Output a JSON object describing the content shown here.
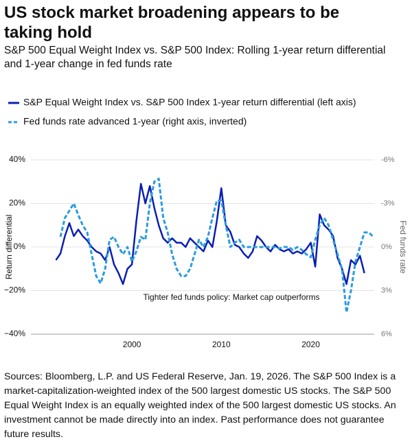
{
  "chart_data": {
    "type": "line",
    "title": "US stock market broadening appears to be taking hold",
    "subtitle": "S&P 500 Equal Weight Index vs. S&P 500 Index: Rolling 1-year return differential and 1-year change in fed funds rate",
    "ylabel": "Return differential",
    "y2label": "Fed funds rate",
    "annotation": "Tighter fed funds policy: Market cap outperforms",
    "source": "Sources: Bloomberg, L.P. and US Federal Reserve, Jan. 19, 2026. The S&P 500 Index is a market-capitalization-weighted index of the 500 largest domestic US stocks. The S&P 500 Equal Weight Index is an equally weighted index of the 500 largest domestic US stocks. An investment cannot be made directly into an index. Past performance does not guarantee future results.",
    "xlim": [
      1988.7,
      2027.1
    ],
    "xticks": [
      2000,
      2010,
      2020
    ],
    "ylim": [
      -40,
      40
    ],
    "yticks": [
      {
        "value": -40,
        "label": "−40%"
      },
      {
        "value": -20,
        "label": "−20%"
      },
      {
        "value": 0,
        "label": "0%"
      },
      {
        "value": 20,
        "label": "20%"
      },
      {
        "value": 40,
        "label": "40%"
      }
    ],
    "y2lim": [
      6,
      -6
    ],
    "y2ticks": [
      {
        "value": 6,
        "label": "6%"
      },
      {
        "value": 3,
        "label": "3%"
      },
      {
        "value": 0,
        "label": "0%"
      },
      {
        "value": -3,
        "label": "-3%"
      },
      {
        "value": -6,
        "label": "-6%"
      }
    ],
    "grid": true,
    "x": [
      1991.5,
      1992,
      1992.5,
      1993,
      1993.5,
      1994,
      1994.5,
      1995,
      1995.5,
      1996,
      1996.5,
      1997,
      1997.5,
      1998,
      1998.5,
      1999,
      1999.5,
      2000,
      2000.5,
      2001,
      2001.5,
      2002,
      2002.5,
      2003,
      2003.5,
      2004,
      2004.5,
      2005,
      2005.5,
      2006,
      2006.5,
      2007,
      2007.5,
      2008,
      2008.5,
      2009,
      2009.5,
      2010,
      2010.5,
      2011,
      2011.5,
      2012,
      2012.5,
      2013,
      2013.5,
      2014,
      2014.5,
      2015,
      2015.5,
      2016,
      2016.5,
      2017,
      2017.5,
      2018,
      2018.5,
      2019,
      2019.5,
      2020,
      2020.5,
      2021,
      2021.5,
      2022,
      2022.5,
      2023,
      2023.5,
      2024,
      2024.5,
      2025,
      2025.5,
      2026,
      2026.5,
      2027
    ],
    "series": [
      {
        "name": "S&P Equal Weight Index vs. S&P 500 Index 1-year return differential (left axis)",
        "color": "#0a1eb4",
        "dashed": false,
        "values": [
          -6,
          -3,
          5,
          11,
          5,
          8,
          5,
          3,
          0,
          -2,
          -3,
          -6,
          0,
          -8,
          -12,
          -17,
          -10,
          -8,
          12,
          29,
          20,
          28,
          18,
          10,
          4,
          2,
          4,
          2,
          2,
          0,
          4,
          2,
          0,
          -2,
          3,
          0,
          12,
          27,
          10,
          7,
          1,
          0,
          -3,
          -5,
          -2,
          5,
          3,
          0,
          -2,
          1,
          -1,
          -2,
          -1,
          -3,
          -2,
          -3,
          -1,
          2,
          -9,
          15,
          10,
          8,
          5,
          -5,
          -10,
          -17,
          -6,
          -8,
          -4,
          -12,
          null,
          null
        ]
      },
      {
        "name": "Fed funds rate advanced 1-year (right axis, inverted)",
        "color": "#2a9be0",
        "dashed": true,
        "axis": "y2",
        "values": [
          null,
          -0.7,
          -2,
          -2.5,
          -3,
          -2.2,
          -1.5,
          -1,
          0.5,
          2,
          2.5,
          1.5,
          -0.5,
          -0.7,
          0,
          0.5,
          0,
          1,
          0.3,
          -0.7,
          -0.5,
          -3,
          -4.5,
          -4.7,
          -2,
          -1,
          0.5,
          1.5,
          2,
          2,
          1.5,
          0.5,
          -0.5,
          0,
          -0.7,
          -2,
          -3.2,
          -3.2,
          -1.5,
          0,
          -0.3,
          -0.5,
          0,
          0,
          0,
          0,
          0,
          0,
          0,
          0,
          0.1,
          0,
          0,
          0.2,
          0,
          0.2,
          0.5,
          0.7,
          -0.5,
          -1.5,
          -2,
          -1.5,
          -0.5,
          0.5,
          1.5,
          4.5,
          3,
          1,
          0,
          -1,
          -1,
          -0.7
        ]
      }
    ]
  }
}
